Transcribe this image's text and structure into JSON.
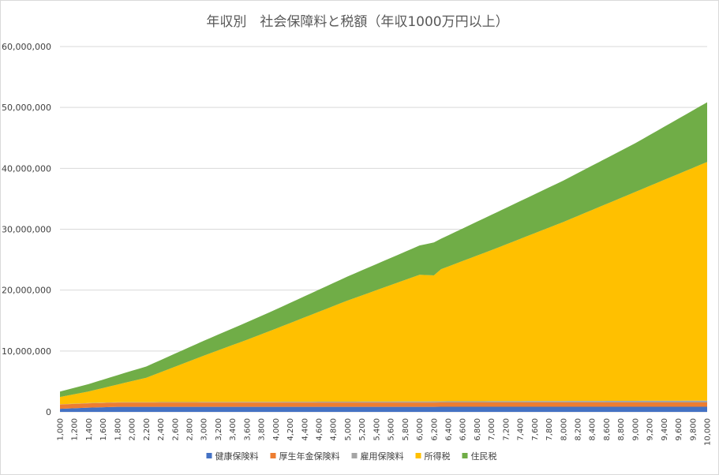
{
  "chart_data": {
    "type": "area",
    "stacked": true,
    "title": "年収別　社会保障料と税額（年収1000万円以上）",
    "xlabel": "",
    "ylabel": "",
    "ylim": [
      0,
      60000000
    ],
    "y_ticks": [
      "0",
      "10,000,000",
      "20,000,000",
      "30,000,000",
      "40,000,000",
      "50,000,000",
      "60,000,000"
    ],
    "x_range": [
      1000,
      10000
    ],
    "x_step": 100,
    "x_tick_labels": [
      "1,000",
      "1,200",
      "1,400",
      "1,600",
      "1,800",
      "2,000",
      "2,200",
      "2,400",
      "2,600",
      "2,800",
      "3,000",
      "3,200",
      "3,400",
      "3,600",
      "3,800",
      "4,000",
      "4,200",
      "4,400",
      "4,600",
      "4,800",
      "5,000",
      "5,200",
      "5,400",
      "5,600",
      "5,800",
      "6,000",
      "6,200",
      "6,400",
      "6,600",
      "6,800",
      "7,000",
      "7,200",
      "7,400",
      "7,600",
      "7,800",
      "8,000",
      "8,200",
      "8,400",
      "8,600",
      "8,800",
      "9,000",
      "9,200",
      "9,400",
      "9,600",
      "9,800",
      "10,000"
    ],
    "legend_position": "bottom",
    "grid": true,
    "series": [
      {
        "name": "健康保険料",
        "color": "#4472C4",
        "x": [
          1000,
          1400,
          1800,
          6200,
          6300,
          10000
        ],
        "values": [
          500000,
          700000,
          830000,
          830000,
          840000,
          840000
        ]
      },
      {
        "name": "厚生年金保険料",
        "color": "#ED7D31",
        "x": [
          1000,
          1400,
          1800,
          10000
        ],
        "values": [
          710000,
          710000,
          710000,
          710000
        ]
      },
      {
        "name": "雇用保険料",
        "color": "#A5A5A5",
        "x": [
          1000,
          10000
        ],
        "values": [
          30000,
          300000
        ]
      },
      {
        "name": "所得税",
        "color": "#FFC000",
        "x": [
          1000,
          1400,
          1800,
          2200,
          2600,
          3000,
          3600,
          4000,
          5000,
          6000,
          6200,
          6300,
          7000,
          8000,
          9000,
          10000
        ],
        "values": [
          1200000,
          1900000,
          2900000,
          4000000,
          5800000,
          7600000,
          10200000,
          12000000,
          16600000,
          20800000,
          20700000,
          21700000,
          24800000,
          29400000,
          34300000,
          39200000
        ]
      },
      {
        "name": "住民税",
        "color": "#70AD47",
        "x": [
          1000,
          2000,
          3000,
          4000,
          5000,
          6000,
          6200,
          6300,
          7000,
          8000,
          9000,
          10000
        ],
        "values": [
          900000,
          1700000,
          2450000,
          3150000,
          3950000,
          4800000,
          5400000,
          5000000,
          5800000,
          6800000,
          8000000,
          9800000
        ]
      }
    ]
  }
}
